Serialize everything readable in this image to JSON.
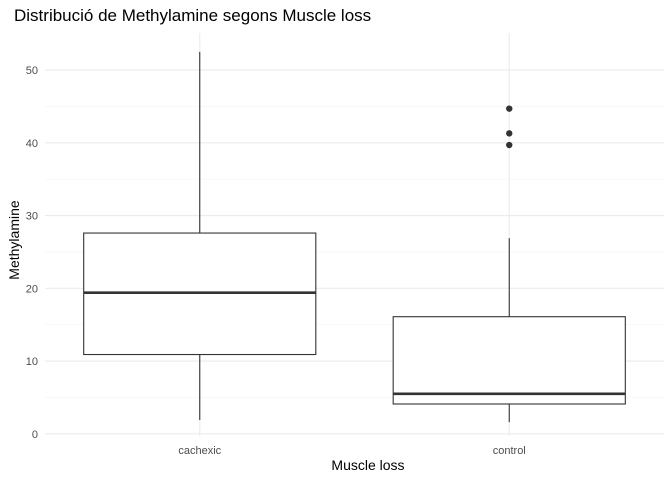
{
  "chart_data": {
    "type": "boxplot",
    "title": "Distribució de Methylamine segons Muscle loss",
    "xlabel": "Muscle loss",
    "ylabel": "Methylamine",
    "categories": [
      "cachexic",
      "control"
    ],
    "ylim": [
      -0.3,
      55.1
    ],
    "y_ticks": [
      0,
      10,
      20,
      30,
      40,
      50
    ],
    "grid": true,
    "boxes": [
      {
        "category": "cachexic",
        "whisker_low": 1.9,
        "q1": 10.9,
        "median": 19.4,
        "q3": 27.6,
        "whisker_high": 52.5,
        "outliers": []
      },
      {
        "category": "control",
        "whisker_low": 1.6,
        "q1": 4.1,
        "median": 5.5,
        "q3": 16.1,
        "whisker_high": 26.9,
        "outliers": [
          39.7,
          41.3,
          44.7
        ]
      }
    ],
    "colors": {
      "box_stroke": "#333333",
      "box_fill": "#ffffff",
      "grid_major": "#ebebeb",
      "grid_minor": "#f5f5f5"
    }
  }
}
